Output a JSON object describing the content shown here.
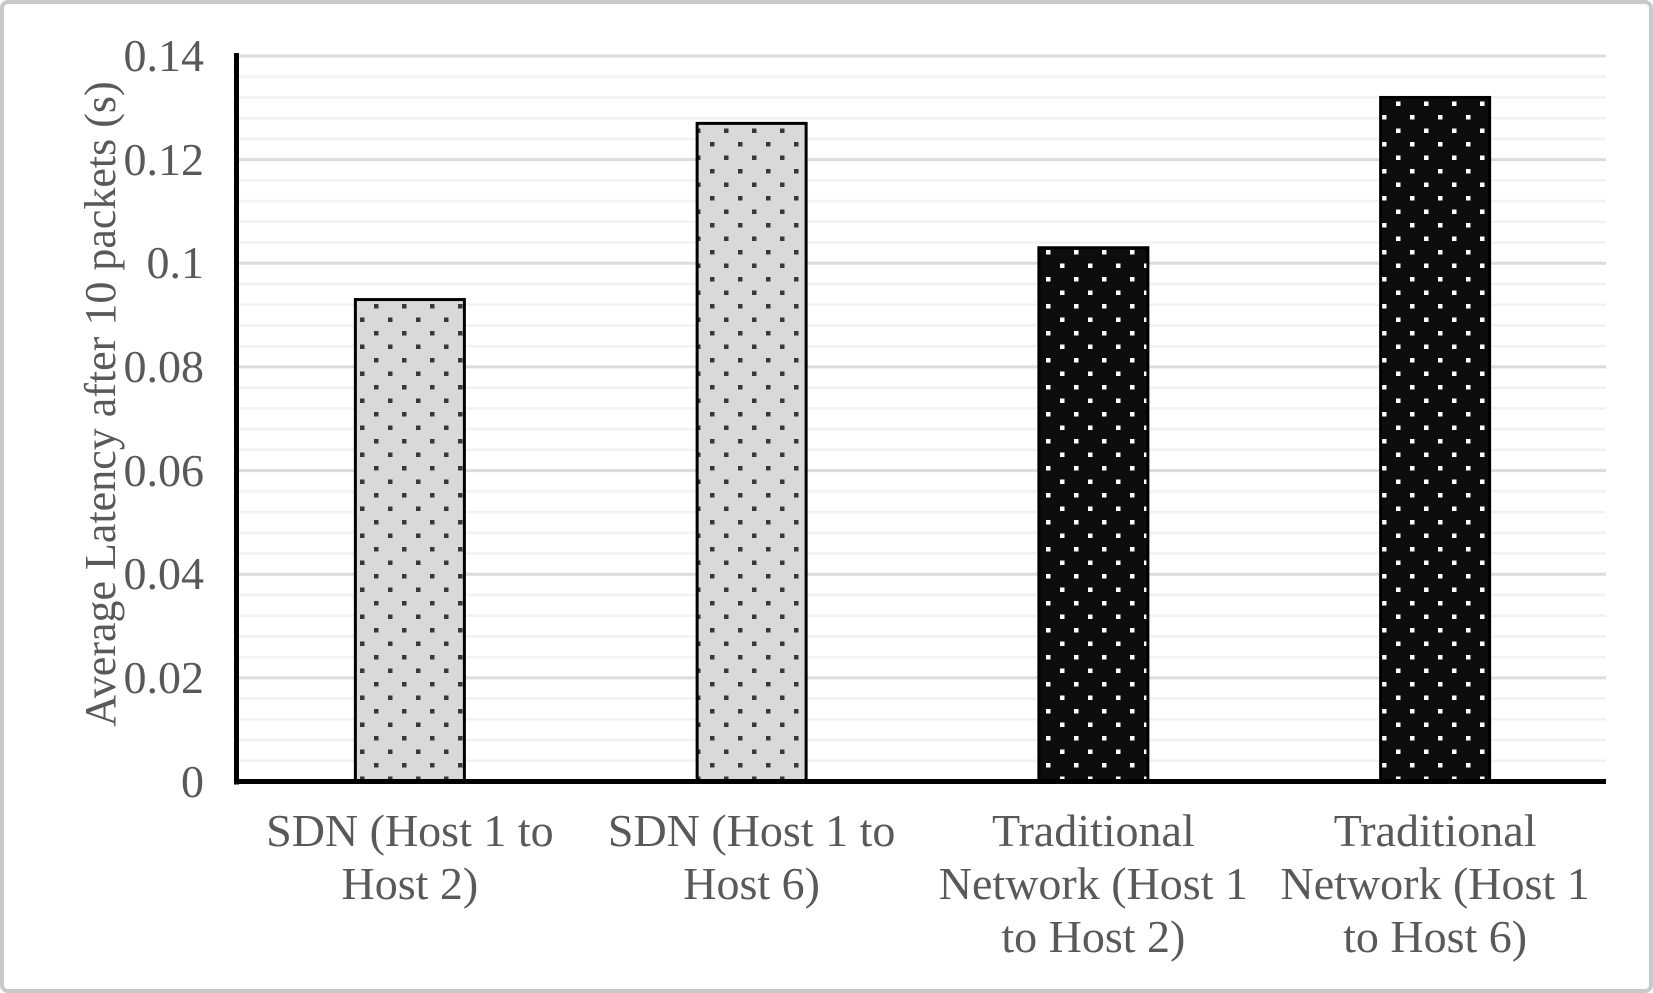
{
  "chart_data": {
    "type": "bar",
    "title": "",
    "xlabel": "",
    "ylabel": "Average Latency after 10 packets (s)",
    "categories": [
      "SDN (Host 1 to Host 2)",
      "SDN (Host 1 to Host 6)",
      "Traditional Network (Host 1 to Host 2)",
      "Traditional Network (Host 1 to Host 6)"
    ],
    "category_label_lines": [
      [
        "SDN (Host 1 to",
        "Host 2)"
      ],
      [
        "SDN (Host 1 to",
        "Host 6)"
      ],
      [
        "Traditional",
        "Network (Host 1",
        "to Host 2)"
      ],
      [
        "Traditional",
        "Network (Host 1",
        "to Host 6)"
      ]
    ],
    "values": [
      0.093,
      0.127,
      0.103,
      0.132
    ],
    "ylim": [
      0,
      0.14
    ],
    "ytick_interval": 0.02,
    "minor_tick_interval": 0.004,
    "yticks_display": [
      "0",
      "0.02",
      "0.04",
      "0.06",
      "0.08",
      "0.1",
      "0.12",
      "0.14"
    ],
    "grid": true,
    "legend": false,
    "bar_styles": [
      {
        "name": "sdn-pattern",
        "fill": "#d9d9d9",
        "dot": "#383838",
        "border": "#000000"
      },
      {
        "name": "sdn-pattern",
        "fill": "#d9d9d9",
        "dot": "#383838",
        "border": "#000000"
      },
      {
        "name": "traditional-pattern",
        "fill": "#0d0d0d",
        "dot": "#ffffff",
        "border": "#000000"
      },
      {
        "name": "traditional-pattern",
        "fill": "#0d0d0d",
        "dot": "#ffffff",
        "border": "#000000"
      }
    ]
  },
  "colors": {
    "text": "#595959",
    "axis_line": "#000000",
    "gridline_major": "#dcdcdc",
    "gridline_minor": "#f2f2f2",
    "frame_border": "#c9c9c9",
    "background": "#ffffff"
  }
}
